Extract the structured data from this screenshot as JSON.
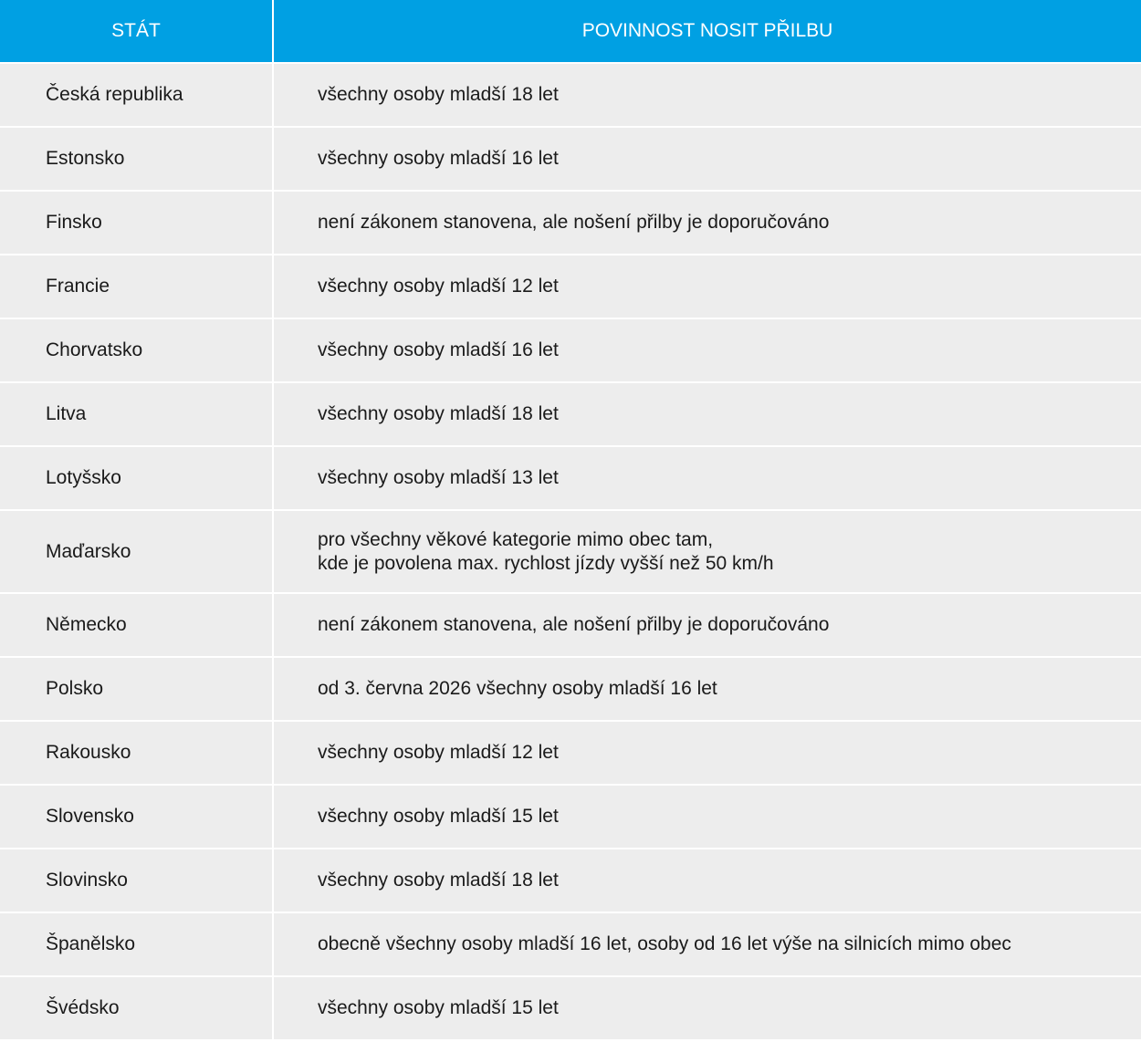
{
  "table": {
    "header": [
      "STÁT",
      "POVINNOST NOSIT PŘILBU"
    ],
    "rows": [
      [
        "Česká republika",
        "všechny osoby mladší 18 let"
      ],
      [
        "Estonsko",
        "všechny osoby mladší 16 let"
      ],
      [
        "Finsko",
        "není zákonem stanovena, ale nošení přilby je doporučováno"
      ],
      [
        "Francie",
        "všechny osoby mladší 12 let"
      ],
      [
        "Chorvatsko",
        "všechny osoby mladší 16 let"
      ],
      [
        "Litva",
        "všechny osoby mladší 18 let"
      ],
      [
        "Lotyšsko",
        "všechny osoby mladší 13 let"
      ],
      [
        "Maďarsko",
        "pro všechny věkové kategorie mimo obec tam,\nkde je povolena max. rychlost jízdy vyšší než 50 km/h"
      ],
      [
        "Německo",
        "není zákonem stanovena, ale nošení přilby je doporučováno"
      ],
      [
        "Polsko",
        "od 3. června 2026 všechny osoby mladší 16 let"
      ],
      [
        "Rakousko",
        "všechny osoby mladší 12 let"
      ],
      [
        "Slovensko",
        "všechny osoby mladší 15 let"
      ],
      [
        "Slovinsko",
        "všechny osoby mladší 18 let"
      ],
      [
        "Španělsko",
        "obecně všechny osoby mladší 16 let, osoby od 16 let výše na silnicích mimo obec"
      ],
      [
        "Švédsko",
        "všechny osoby mladší 15 let"
      ]
    ]
  }
}
